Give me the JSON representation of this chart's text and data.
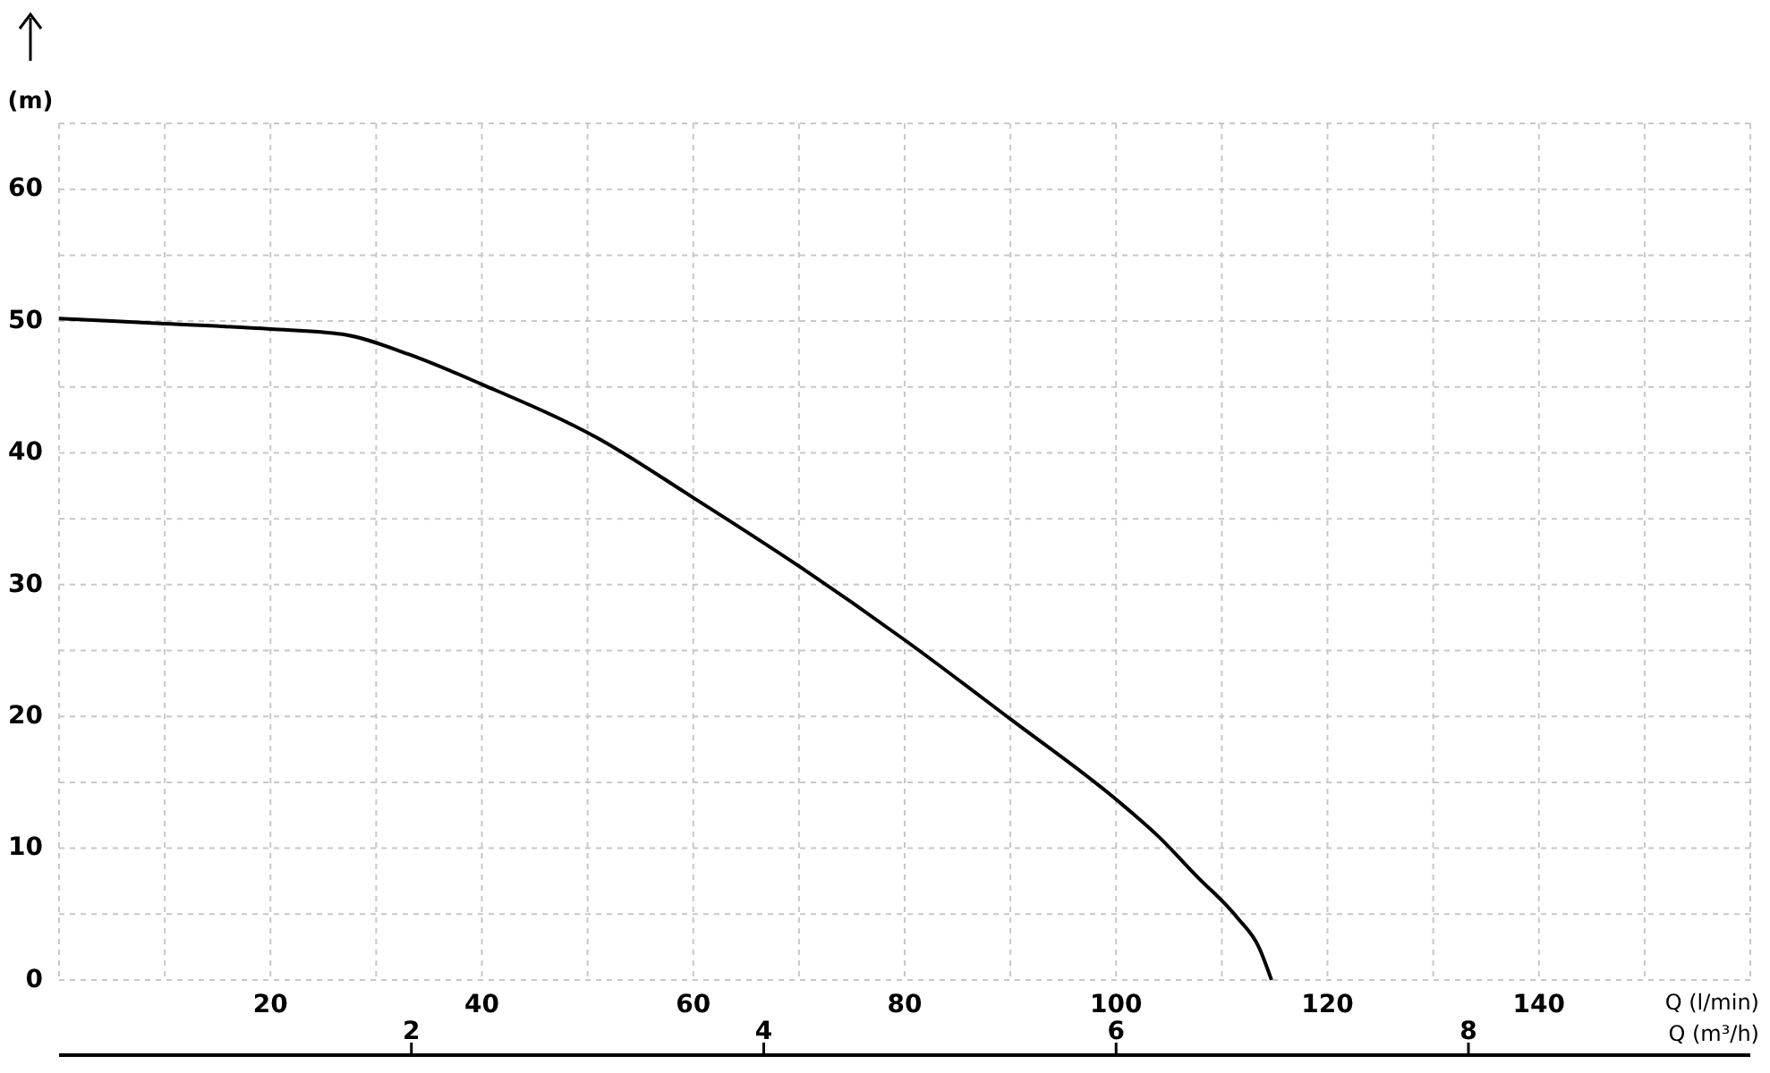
{
  "chart_data": {
    "type": "line",
    "ylabel": "(m)",
    "xlabel": "Q (l/min)",
    "x2label": "Q (m³/h)",
    "x": [
      0,
      10,
      20,
      26.8,
      33,
      40,
      51,
      60,
      70,
      80,
      90,
      100,
      104,
      107.6,
      111.5,
      113.5,
      114.7
    ],
    "series": [
      {
        "color": "#000000",
        "values": [
          50.2,
          49.8,
          49.4,
          49,
          47.5,
          45.2,
          41.1,
          36.6,
          31.4,
          25.8,
          19.8,
          13.7,
          10.9,
          7.9,
          4.7,
          2.5,
          0
        ]
      }
    ],
    "xlim": [
      0,
      160
    ],
    "xticks": [
      {
        "value": 0,
        "label": null
      },
      {
        "value": 10,
        "label": null
      },
      20,
      {
        "value": 30,
        "label": null
      },
      40,
      {
        "value": 50,
        "label": null
      },
      60,
      {
        "value": 70,
        "label": null
      },
      80,
      {
        "value": 90,
        "label": null
      },
      100,
      {
        "value": 110,
        "label": null
      },
      120,
      {
        "value": 130,
        "label": null
      },
      140,
      {
        "value": 150,
        "label": null
      },
      {
        "value": 160,
        "label": null
      }
    ],
    "ylim": [
      0,
      65
    ],
    "yticks": [
      0,
      {
        "value": 5,
        "label": null
      },
      10,
      {
        "value": 15,
        "label": null
      },
      20,
      {
        "value": 25,
        "label": null
      },
      30,
      {
        "value": 35,
        "label": null
      },
      40,
      {
        "value": 45,
        "label": null
      },
      50,
      {
        "value": 55,
        "label": null
      },
      60,
      {
        "value": 65,
        "label": null
      }
    ],
    "x2lim": [
      0,
      9.6
    ],
    "x2ticks": [
      2,
      4,
      6,
      8
    ],
    "grid": true,
    "marker": "none",
    "line_style": "solid"
  }
}
